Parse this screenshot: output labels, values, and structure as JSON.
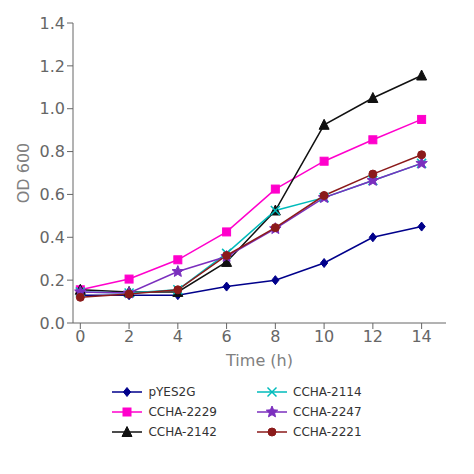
{
  "chart_data": {
    "type": "line",
    "xlabel": "Time (h)",
    "ylabel": "OD 600",
    "x": [
      0,
      2,
      4,
      6,
      8,
      10,
      12,
      14
    ],
    "series": [
      {
        "name": "pYES2G",
        "color": "#00008B",
        "marker": "diamond",
        "values": [
          0.13,
          0.13,
          0.13,
          0.17,
          0.2,
          0.28,
          0.4,
          0.45
        ]
      },
      {
        "name": "CCHA-2229",
        "color": "#FF00CC",
        "marker": "square",
        "values": [
          0.155,
          0.205,
          0.295,
          0.425,
          0.625,
          0.755,
          0.855,
          0.95
        ]
      },
      {
        "name": "CCHA-2142",
        "color": "#111111",
        "marker": "triangle",
        "values": [
          0.155,
          0.145,
          0.145,
          0.285,
          0.525,
          0.925,
          1.05,
          1.155
        ]
      },
      {
        "name": "CCHA-2114",
        "color": "#00BBBB",
        "marker": "x",
        "values": [
          0.145,
          0.14,
          0.155,
          0.325,
          0.525,
          0.585,
          0.665,
          0.745
        ]
      },
      {
        "name": "CCHA-2247",
        "color": "#7B2FBE",
        "marker": "star",
        "values": [
          0.145,
          0.14,
          0.24,
          0.31,
          0.44,
          0.585,
          0.665,
          0.745
        ]
      },
      {
        "name": "CCHA-2221",
        "color": "#8B1A1A",
        "marker": "circle",
        "values": [
          0.12,
          0.135,
          0.155,
          0.315,
          0.445,
          0.595,
          0.695,
          0.785
        ]
      }
    ],
    "xlim": [
      -0.3,
      15.0
    ],
    "ylim": [
      0,
      1.4
    ],
    "xticks": [
      0,
      2,
      4,
      6,
      8,
      10,
      12,
      14
    ],
    "yticks": [
      {
        "value": 0,
        "label": "0.0"
      },
      0.2,
      0.4,
      0.6,
      0.8,
      {
        "value": 1,
        "label": "1.0"
      },
      1.2,
      1.4
    ],
    "legend": "bottom"
  }
}
